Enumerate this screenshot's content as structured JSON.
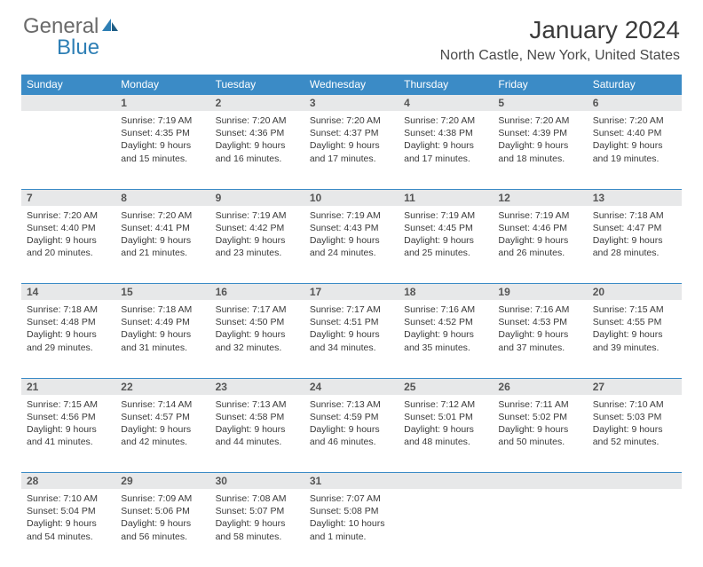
{
  "logo": {
    "text1": "General",
    "text2": "Blue"
  },
  "title": "January 2024",
  "location": "North Castle, New York, United States",
  "colors": {
    "header_bg": "#3b8bc6",
    "header_text": "#ffffff",
    "daynum_bg": "#e7e8e9",
    "daynum_border": "#3b8bc6",
    "body_text": "#3a3a3a",
    "title_text": "#3b3b3b",
    "logo_gray": "#6a6a6a",
    "logo_blue": "#2e7fb5"
  },
  "weekdays": [
    "Sunday",
    "Monday",
    "Tuesday",
    "Wednesday",
    "Thursday",
    "Friday",
    "Saturday"
  ],
  "weeks": [
    {
      "nums": [
        "",
        "1",
        "2",
        "3",
        "4",
        "5",
        "6"
      ],
      "cells": [
        null,
        {
          "sunrise": "Sunrise: 7:19 AM",
          "sunset": "Sunset: 4:35 PM",
          "daylight": "Daylight: 9 hours and 15 minutes."
        },
        {
          "sunrise": "Sunrise: 7:20 AM",
          "sunset": "Sunset: 4:36 PM",
          "daylight": "Daylight: 9 hours and 16 minutes."
        },
        {
          "sunrise": "Sunrise: 7:20 AM",
          "sunset": "Sunset: 4:37 PM",
          "daylight": "Daylight: 9 hours and 17 minutes."
        },
        {
          "sunrise": "Sunrise: 7:20 AM",
          "sunset": "Sunset: 4:38 PM",
          "daylight": "Daylight: 9 hours and 17 minutes."
        },
        {
          "sunrise": "Sunrise: 7:20 AM",
          "sunset": "Sunset: 4:39 PM",
          "daylight": "Daylight: 9 hours and 18 minutes."
        },
        {
          "sunrise": "Sunrise: 7:20 AM",
          "sunset": "Sunset: 4:40 PM",
          "daylight": "Daylight: 9 hours and 19 minutes."
        }
      ]
    },
    {
      "nums": [
        "7",
        "8",
        "9",
        "10",
        "11",
        "12",
        "13"
      ],
      "cells": [
        {
          "sunrise": "Sunrise: 7:20 AM",
          "sunset": "Sunset: 4:40 PM",
          "daylight": "Daylight: 9 hours and 20 minutes."
        },
        {
          "sunrise": "Sunrise: 7:20 AM",
          "sunset": "Sunset: 4:41 PM",
          "daylight": "Daylight: 9 hours and 21 minutes."
        },
        {
          "sunrise": "Sunrise: 7:19 AM",
          "sunset": "Sunset: 4:42 PM",
          "daylight": "Daylight: 9 hours and 23 minutes."
        },
        {
          "sunrise": "Sunrise: 7:19 AM",
          "sunset": "Sunset: 4:43 PM",
          "daylight": "Daylight: 9 hours and 24 minutes."
        },
        {
          "sunrise": "Sunrise: 7:19 AM",
          "sunset": "Sunset: 4:45 PM",
          "daylight": "Daylight: 9 hours and 25 minutes."
        },
        {
          "sunrise": "Sunrise: 7:19 AM",
          "sunset": "Sunset: 4:46 PM",
          "daylight": "Daylight: 9 hours and 26 minutes."
        },
        {
          "sunrise": "Sunrise: 7:18 AM",
          "sunset": "Sunset: 4:47 PM",
          "daylight": "Daylight: 9 hours and 28 minutes."
        }
      ]
    },
    {
      "nums": [
        "14",
        "15",
        "16",
        "17",
        "18",
        "19",
        "20"
      ],
      "cells": [
        {
          "sunrise": "Sunrise: 7:18 AM",
          "sunset": "Sunset: 4:48 PM",
          "daylight": "Daylight: 9 hours and 29 minutes."
        },
        {
          "sunrise": "Sunrise: 7:18 AM",
          "sunset": "Sunset: 4:49 PM",
          "daylight": "Daylight: 9 hours and 31 minutes."
        },
        {
          "sunrise": "Sunrise: 7:17 AM",
          "sunset": "Sunset: 4:50 PM",
          "daylight": "Daylight: 9 hours and 32 minutes."
        },
        {
          "sunrise": "Sunrise: 7:17 AM",
          "sunset": "Sunset: 4:51 PM",
          "daylight": "Daylight: 9 hours and 34 minutes."
        },
        {
          "sunrise": "Sunrise: 7:16 AM",
          "sunset": "Sunset: 4:52 PM",
          "daylight": "Daylight: 9 hours and 35 minutes."
        },
        {
          "sunrise": "Sunrise: 7:16 AM",
          "sunset": "Sunset: 4:53 PM",
          "daylight": "Daylight: 9 hours and 37 minutes."
        },
        {
          "sunrise": "Sunrise: 7:15 AM",
          "sunset": "Sunset: 4:55 PM",
          "daylight": "Daylight: 9 hours and 39 minutes."
        }
      ]
    },
    {
      "nums": [
        "21",
        "22",
        "23",
        "24",
        "25",
        "26",
        "27"
      ],
      "cells": [
        {
          "sunrise": "Sunrise: 7:15 AM",
          "sunset": "Sunset: 4:56 PM",
          "daylight": "Daylight: 9 hours and 41 minutes."
        },
        {
          "sunrise": "Sunrise: 7:14 AM",
          "sunset": "Sunset: 4:57 PM",
          "daylight": "Daylight: 9 hours and 42 minutes."
        },
        {
          "sunrise": "Sunrise: 7:13 AM",
          "sunset": "Sunset: 4:58 PM",
          "daylight": "Daylight: 9 hours and 44 minutes."
        },
        {
          "sunrise": "Sunrise: 7:13 AM",
          "sunset": "Sunset: 4:59 PM",
          "daylight": "Daylight: 9 hours and 46 minutes."
        },
        {
          "sunrise": "Sunrise: 7:12 AM",
          "sunset": "Sunset: 5:01 PM",
          "daylight": "Daylight: 9 hours and 48 minutes."
        },
        {
          "sunrise": "Sunrise: 7:11 AM",
          "sunset": "Sunset: 5:02 PM",
          "daylight": "Daylight: 9 hours and 50 minutes."
        },
        {
          "sunrise": "Sunrise: 7:10 AM",
          "sunset": "Sunset: 5:03 PM",
          "daylight": "Daylight: 9 hours and 52 minutes."
        }
      ]
    },
    {
      "nums": [
        "28",
        "29",
        "30",
        "31",
        "",
        "",
        ""
      ],
      "cells": [
        {
          "sunrise": "Sunrise: 7:10 AM",
          "sunset": "Sunset: 5:04 PM",
          "daylight": "Daylight: 9 hours and 54 minutes."
        },
        {
          "sunrise": "Sunrise: 7:09 AM",
          "sunset": "Sunset: 5:06 PM",
          "daylight": "Daylight: 9 hours and 56 minutes."
        },
        {
          "sunrise": "Sunrise: 7:08 AM",
          "sunset": "Sunset: 5:07 PM",
          "daylight": "Daylight: 9 hours and 58 minutes."
        },
        {
          "sunrise": "Sunrise: 7:07 AM",
          "sunset": "Sunset: 5:08 PM",
          "daylight": "Daylight: 10 hours and 1 minute."
        },
        null,
        null,
        null
      ]
    }
  ]
}
